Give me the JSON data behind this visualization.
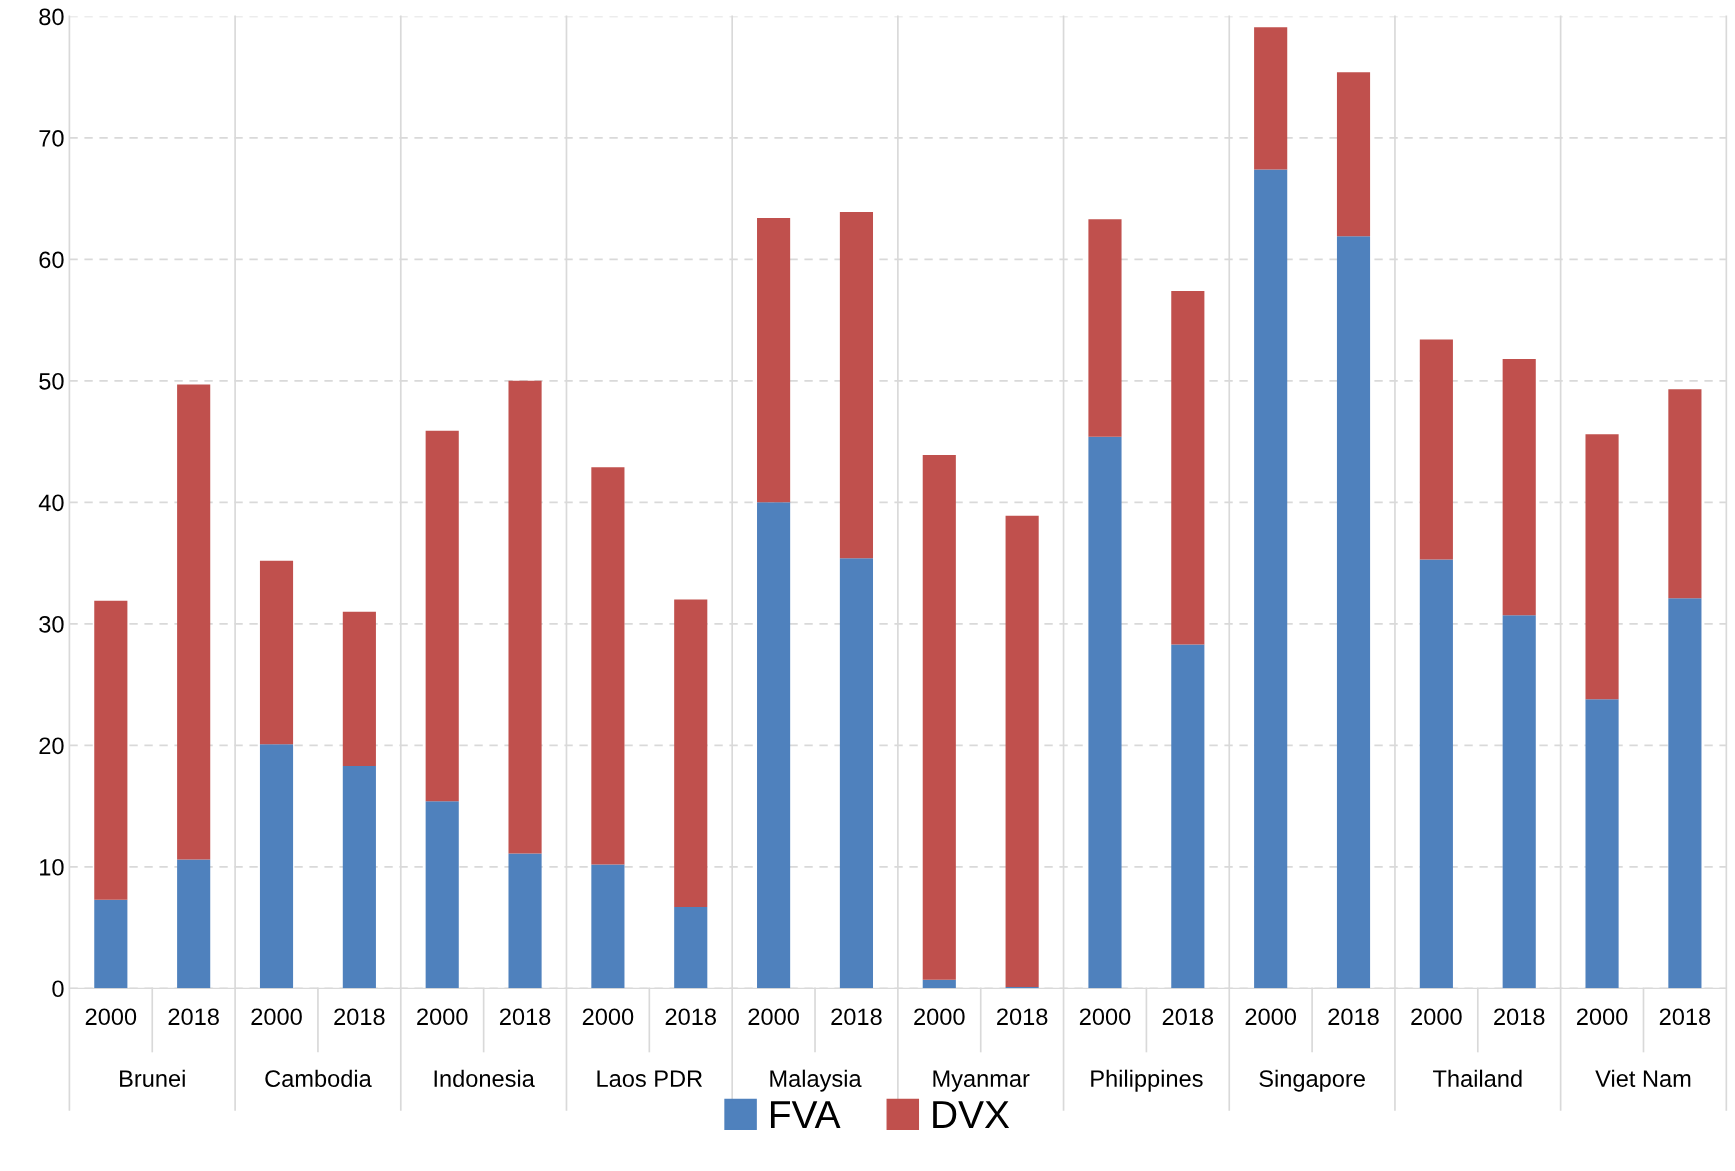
{
  "chart_data": {
    "type": "bar",
    "stacked": true,
    "categories": [
      "2000",
      "2018",
      "2000",
      "2018",
      "2000",
      "2018",
      "2000",
      "2018",
      "2000",
      "2018",
      "2000",
      "2018",
      "2000",
      "2018",
      "2000",
      "2018",
      "2000",
      "2018",
      "2000",
      "2018"
    ],
    "annotations": [
      "Brunei",
      "Cambodia",
      "Indonesia",
      "Laos PDR",
      "Malaysia",
      "Myanmar",
      "Philippines",
      "Singapore",
      "Thailand",
      "Viet Nam"
    ],
    "series": [
      {
        "name": "FVA",
        "color": "#4f81bd",
        "values": [
          7.3,
          10.6,
          20.1,
          18.3,
          15.4,
          11.1,
          10.2,
          6.7,
          40.0,
          35.4,
          0.7,
          0.1,
          45.4,
          28.3,
          67.4,
          61.9,
          35.3,
          30.7,
          23.8,
          32.1
        ]
      },
      {
        "name": "DVX",
        "color": "#c0504d",
        "values": [
          24.6,
          39.1,
          15.1,
          12.7,
          30.5,
          38.9,
          32.7,
          25.3,
          23.4,
          28.5,
          43.2,
          38.8,
          17.9,
          29.1,
          11.7,
          13.5,
          18.1,
          21.1,
          21.8,
          17.2
        ]
      }
    ],
    "ylim": [
      0,
      80
    ],
    "yticks": [
      0,
      10,
      20,
      30,
      40,
      50,
      60,
      70,
      80
    ],
    "grid": "y",
    "legend": "bottom"
  }
}
